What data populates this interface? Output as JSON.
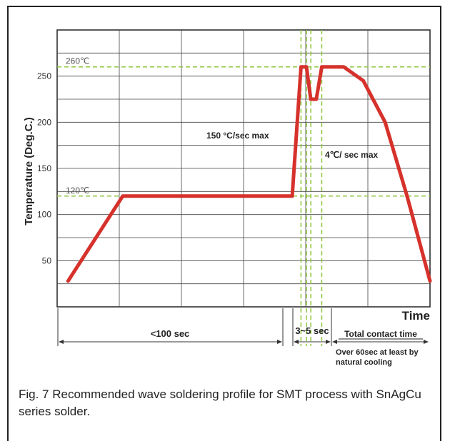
{
  "chart_data": {
    "type": "line",
    "ylabel": "Temperature (Deg.C.)",
    "xlabel": "Time",
    "y_ticks": [
      "50",
      "100",
      "150",
      "200",
      "250"
    ],
    "ylim": [
      0,
      300
    ],
    "grid": true,
    "series": [
      {
        "x": [
          1,
          6,
          21.5,
          22.3,
          22.8,
          23.2,
          23.7,
          24.2,
          26.2,
          28,
          30,
          32,
          34.1
        ],
        "values": [
          28,
          120,
          120,
          260,
          260,
          225,
          225,
          260,
          260,
          245,
          200,
          120,
          28
        ]
      }
    ],
    "reference_lines": [
      {
        "label": "260℃",
        "value": 260
      },
      {
        "label": "120℃",
        "value": 120
      }
    ],
    "annotations": {
      "ramp_up": "150 °C/sec max",
      "cool_down": "4℃/ sec max"
    },
    "intervals": {
      "preheat": "<100 sec",
      "peak": "3~5 sec",
      "contact": "Total contact time",
      "contact_note": "Over 60sec at least by natural cooling"
    },
    "colors": {
      "curve": "#d6312b",
      "reference": "#8fc63d",
      "grid": "#333333"
    }
  },
  "caption": "Fig. 7 Recommended wave soldering profile for SMT process with SnAgCu series solder."
}
